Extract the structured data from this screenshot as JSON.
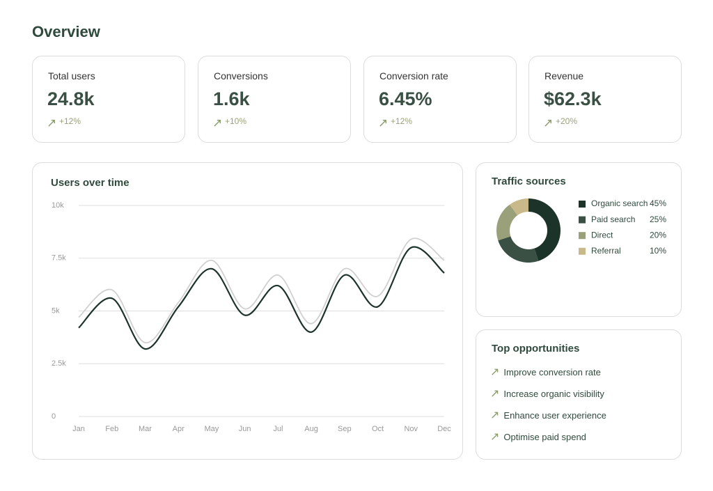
{
  "title": "Overview",
  "kpis": [
    {
      "label": "Total users",
      "value": "24.8k",
      "change": "+12%"
    },
    {
      "label": "Conversions",
      "value": "1.6k",
      "change": "+10%"
    },
    {
      "label": "Conversion rate",
      "value": "6.45%",
      "change": "+12%"
    },
    {
      "label": "Revenue",
      "value": "$62.3k",
      "change": "+20%"
    }
  ],
  "chart_data": [
    {
      "type": "line",
      "title": "Users over time",
      "categories": [
        "Jan",
        "Feb",
        "Mar",
        "Apr",
        "May",
        "Jun",
        "Jul",
        "Aug",
        "Sep",
        "Oct",
        "Nov",
        "Dec"
      ],
      "series": [
        {
          "color": "#d0d0d0",
          "values": [
            4700,
            6000,
            3500,
            5400,
            7400,
            5100,
            6700,
            4400,
            7000,
            5700,
            8400,
            7400
          ]
        },
        {
          "color": "#1c3329",
          "values": [
            4200,
            5600,
            3200,
            5200,
            7000,
            4800,
            6200,
            4000,
            6700,
            5200,
            8000,
            6800
          ]
        }
      ],
      "ylim": [
        0,
        10000
      ],
      "yticks": [
        0,
        {
          "value": 2500,
          "label": "2.5k"
        },
        {
          "value": 5000,
          "label": "5k"
        },
        {
          "value": 7500,
          "label": "7.5k"
        },
        {
          "value": 10000,
          "label": "10k"
        }
      ],
      "grid": true
    },
    {
      "type": "donut",
      "title": "Traffic sources",
      "categories": [
        "Organic search",
        "Paid search",
        "Direct",
        "Referral"
      ],
      "values": [
        45,
        25,
        20,
        10
      ],
      "value_labels": [
        "45%",
        "25%",
        "20%",
        "10%"
      ],
      "colors": [
        "#1c3329",
        "#3a5045",
        "#9aa07a",
        "#c9b98a"
      ]
    }
  ],
  "opportunities": {
    "title": "Top opportunities",
    "items": [
      "Improve conversion rate",
      "Increase organic visibility",
      "Enhance user experience",
      "Optimise paid spend"
    ]
  }
}
